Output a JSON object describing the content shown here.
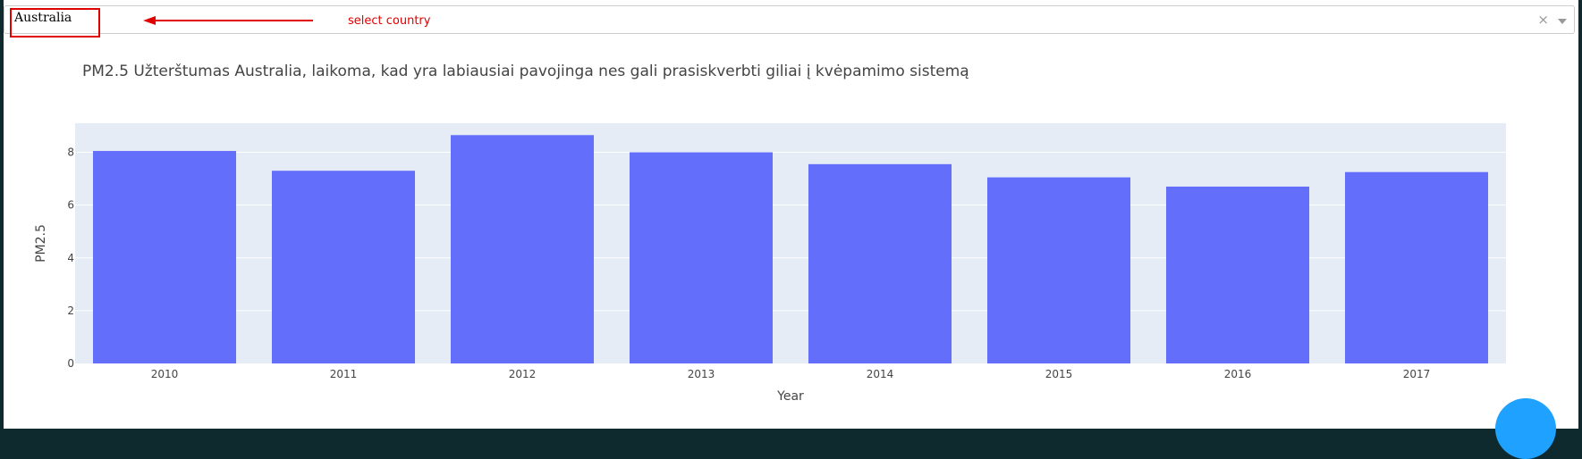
{
  "dropdown": {
    "selected_value": "Australia",
    "clear_icon": "close-icon",
    "toggle_icon": "chevron-down-icon"
  },
  "annotation": {
    "text": "select country",
    "color": "#e00000"
  },
  "chart_data": {
    "type": "bar",
    "title": "PM2.5 Užterštumas Australia, laikoma, kad yra labiausiai pavojinga nes gali prasiskverbti giliai į kvėpamimo sistemą",
    "xlabel": "Year",
    "ylabel": "PM2.5",
    "categories": [
      "2010",
      "2011",
      "2012",
      "2013",
      "2014",
      "2015",
      "2016",
      "2017"
    ],
    "values": [
      8.05,
      7.3,
      8.65,
      8.0,
      7.55,
      7.05,
      6.7,
      7.25
    ],
    "ylim": [
      0,
      9.1
    ],
    "yticks": [
      0,
      2,
      4,
      6,
      8
    ],
    "grid": true,
    "bar_color": "#636efa",
    "plot_bg": "#e5ecf6"
  }
}
